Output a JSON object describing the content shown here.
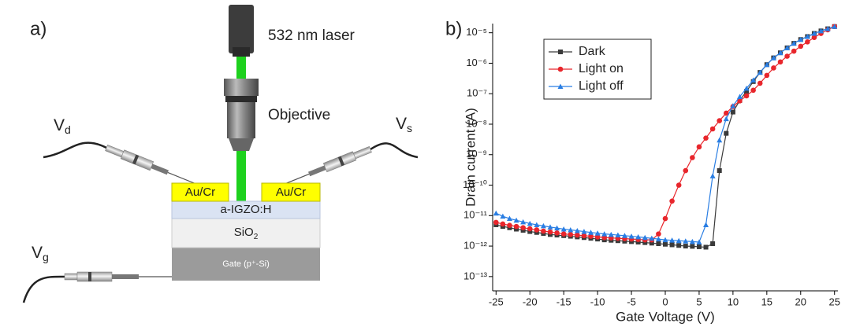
{
  "diagram": {
    "panel_label": "a)",
    "laser_label": "532 nm laser",
    "objective_label": "Objective",
    "drain_probe": {
      "symbol": "V",
      "subscript": "d"
    },
    "source_probe": {
      "symbol": "V",
      "subscript": "s"
    },
    "gate_probe": {
      "symbol": "V",
      "subscript": "g"
    },
    "left_contact": "Au/Cr",
    "right_contact": "Au/Cr",
    "channel_layer": "a-IGZO:H",
    "dielectric_layer": {
      "text": "SiO",
      "subscript": "2"
    },
    "gate_layer": "Gate (p⁺-Si)"
  },
  "chart_data": {
    "type": "line",
    "panel_label": "b)",
    "x_label": "Gate Voltage (V)",
    "y_label": "Drain current (A)",
    "log_y": true,
    "legend": "upper left",
    "xlim": [
      -25.5,
      25.5
    ],
    "xticks": [
      -25,
      -20,
      -15,
      -10,
      -5,
      0,
      5,
      10,
      15,
      20,
      25
    ],
    "ylim": [
      3.4e-14,
      2e-05
    ],
    "yticks": [
      {
        "value": 1e-13,
        "label": "10⁻¹³"
      },
      {
        "value": 1e-12,
        "label": "10⁻¹²"
      },
      {
        "value": 1e-11,
        "label": "10⁻¹¹"
      },
      {
        "value": 1e-10,
        "label": "10⁻¹⁰"
      },
      {
        "value": 1e-09,
        "label": "10⁻⁹"
      },
      {
        "value": 1e-08,
        "label": "10⁻⁸"
      },
      {
        "value": 1e-07,
        "label": "10⁻⁷"
      },
      {
        "value": 1e-06,
        "label": "10⁻⁶"
      },
      {
        "value": 1e-05,
        "label": "10⁻⁵"
      }
    ],
    "x": [
      -25,
      -24,
      -23,
      -22,
      -21,
      -20,
      -19,
      -18,
      -17,
      -16,
      -15,
      -14,
      -13,
      -12,
      -11,
      -10,
      -9,
      -8,
      -7,
      -6,
      -5,
      -4,
      -3,
      -2,
      -1,
      0,
      1,
      2,
      3,
      4,
      5,
      6,
      7,
      8,
      9,
      10,
      11,
      12,
      13,
      14,
      15,
      16,
      17,
      18,
      19,
      20,
      21,
      22,
      23,
      24,
      25
    ],
    "series": [
      {
        "name": "Dark",
        "color": "#3a3a3a",
        "marker": "square",
        "values": [
          5e-12,
          4.4e-12,
          4e-12,
          3.6e-12,
          3.3e-12,
          3e-12,
          2.8e-12,
          2.6e-12,
          2.4e-12,
          2.3e-12,
          2.2e-12,
          2.1e-12,
          2e-12,
          1.9e-12,
          1.8e-12,
          1.7e-12,
          1.6e-12,
          1.55e-12,
          1.5e-12,
          1.45e-12,
          1.4e-12,
          1.35e-12,
          1.3e-12,
          1.25e-12,
          1.2e-12,
          1.15e-12,
          1.1e-12,
          1.05e-12,
          1e-12,
          9.8e-13,
          9.5e-13,
          9.2e-13,
          1.2e-12,
          3e-10,
          5e-09,
          2.5e-08,
          6e-08,
          1.2e-07,
          2.5e-07,
          5e-07,
          9e-07,
          1.5e-06,
          2.2e-06,
          3.2e-06,
          4.5e-06,
          6e-06,
          7.5e-06,
          9.5e-06,
          1.15e-05,
          1.35e-05,
          1.6e-05
        ]
      },
      {
        "name": "Light on",
        "color": "#e8262c",
        "marker": "circle",
        "values": [
          6e-12,
          5.3e-12,
          4.8e-12,
          4.4e-12,
          4e-12,
          3.7e-12,
          3.4e-12,
          3.1e-12,
          2.9e-12,
          2.7e-12,
          2.5e-12,
          2.4e-12,
          2.3e-12,
          2.2e-12,
          2.1e-12,
          2e-12,
          1.9e-12,
          1.85e-12,
          1.8e-12,
          1.75e-12,
          1.7e-12,
          1.65e-12,
          1.6e-12,
          1.6e-12,
          2.5e-12,
          8e-12,
          3e-11,
          1e-10,
          3e-10,
          8e-10,
          1.8e-09,
          3.5e-09,
          7e-09,
          1.3e-08,
          2.3e-08,
          3.8e-08,
          5.8e-08,
          8.5e-08,
          1.3e-07,
          2.2e-07,
          4e-07,
          7e-07,
          1.1e-06,
          1.7e-06,
          2.5e-06,
          3.6e-06,
          5e-06,
          7e-06,
          9.5e-06,
          1.25e-05,
          1.6e-05
        ]
      },
      {
        "name": "Light off",
        "color": "#2a7ee3",
        "marker": "triangle",
        "values": [
          1.2e-11,
          9.5e-12,
          8e-12,
          7e-12,
          6.2e-12,
          5.5e-12,
          5e-12,
          4.6e-12,
          4.2e-12,
          3.9e-12,
          3.6e-12,
          3.4e-12,
          3.2e-12,
          3e-12,
          2.8e-12,
          2.65e-12,
          2.5e-12,
          2.4e-12,
          2.3e-12,
          2.2e-12,
          2.1e-12,
          2e-12,
          1.9e-12,
          1.8e-12,
          1.7e-12,
          1.6e-12,
          1.55e-12,
          1.5e-12,
          1.45e-12,
          1.4e-12,
          1.35e-12,
          5e-12,
          2e-10,
          3e-09,
          1.5e-08,
          4e-08,
          8e-08,
          1.5e-07,
          2.8e-07,
          5e-07,
          9e-07,
          1.5e-06,
          2.2e-06,
          3.2e-06,
          4.5e-06,
          6e-06,
          7.5e-06,
          9.5e-06,
          1.15e-05,
          1.35e-05,
          1.6e-05
        ]
      }
    ]
  }
}
